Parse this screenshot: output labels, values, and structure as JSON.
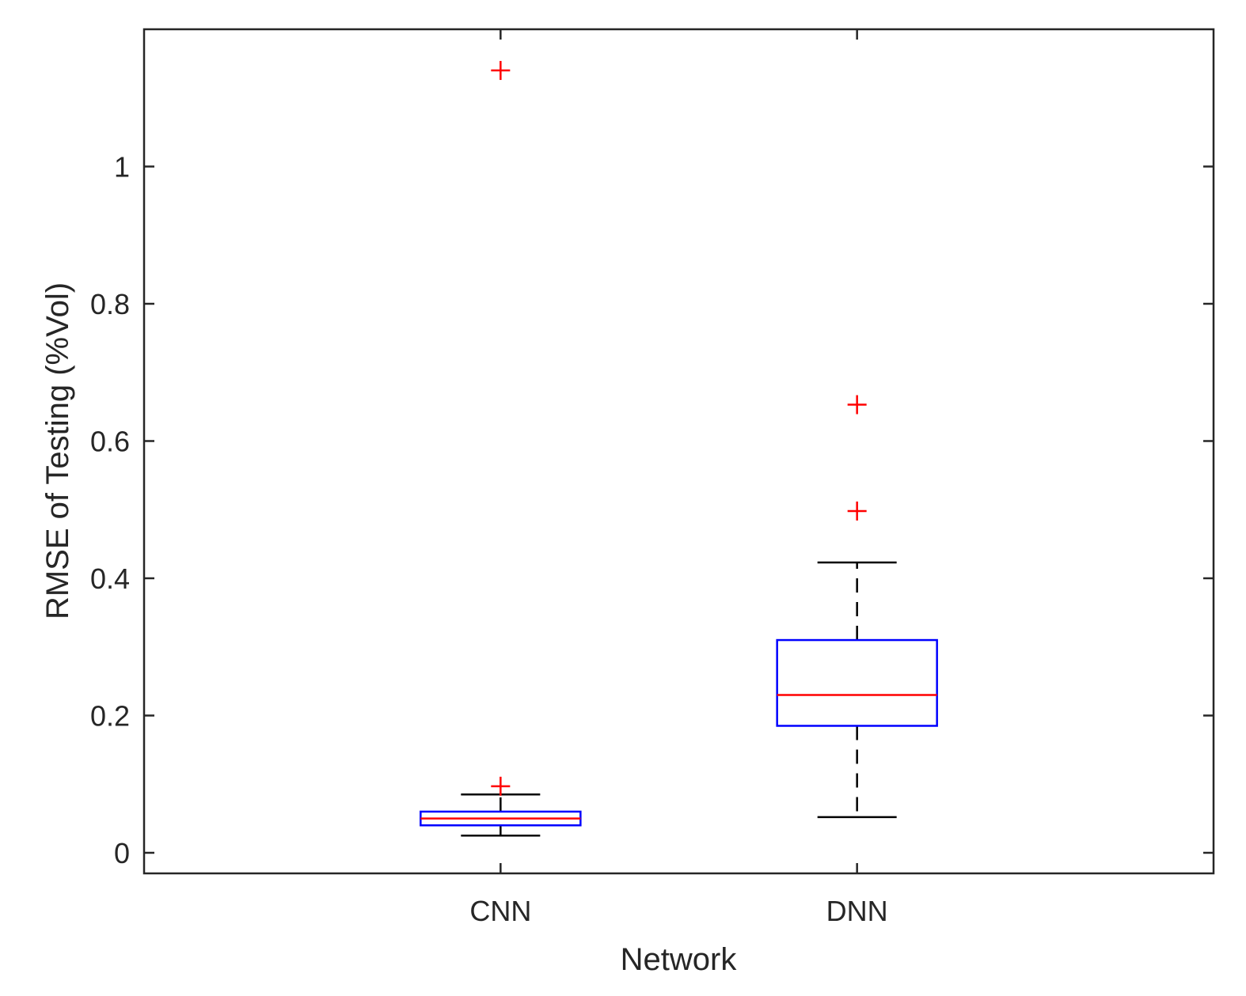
{
  "chart_data": {
    "type": "box",
    "xlabel": "Network",
    "ylabel": "RMSE of Testing (%Vol)",
    "ylim": [
      -0.03,
      1.2
    ],
    "yticks": [
      0,
      0.2,
      0.4,
      0.6,
      0.8,
      1
    ],
    "ytick_labels": [
      "0",
      "0.2",
      "0.4",
      "0.6",
      "0.8",
      "1"
    ],
    "categories": [
      "CNN",
      "DNN"
    ],
    "boxes": [
      {
        "category": "CNN",
        "whisker_low": 0.025,
        "q1": 0.04,
        "median": 0.05,
        "q3": 0.06,
        "whisker_high": 0.085,
        "outliers": [
          0.097,
          1.14
        ]
      },
      {
        "category": "DNN",
        "whisker_low": 0.052,
        "q1": 0.185,
        "median": 0.23,
        "q3": 0.31,
        "whisker_high": 0.423,
        "outliers": [
          0.498,
          0.653
        ]
      }
    ],
    "grid": false,
    "colors": {
      "box": "#0000ff",
      "median": "#ff0000",
      "outlier": "#ff0000",
      "whisker": "#000000",
      "axis": "#262626"
    }
  }
}
